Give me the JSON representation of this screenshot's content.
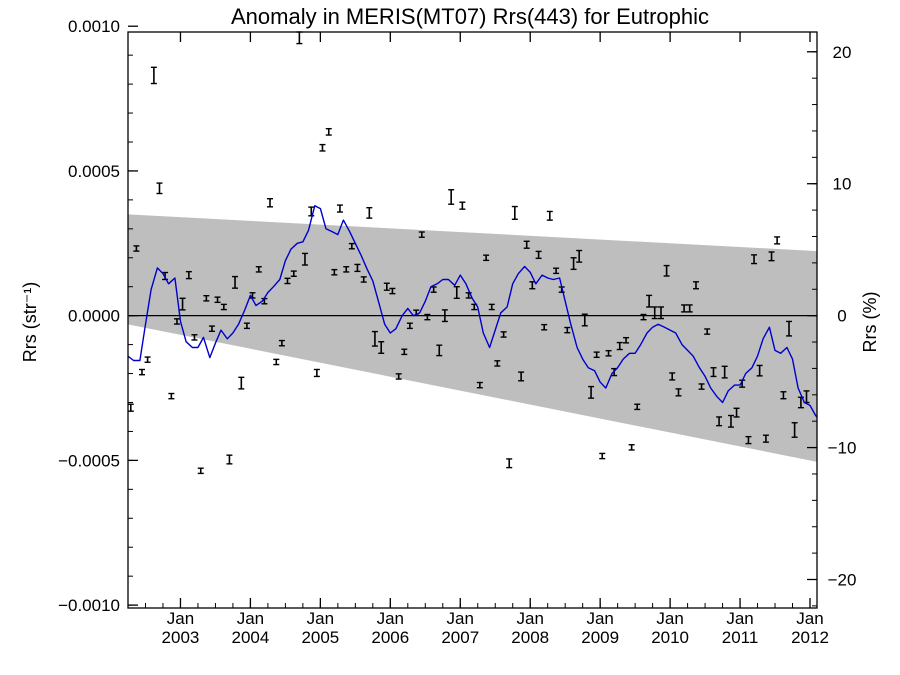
{
  "chart_data": {
    "type": "line",
    "title": "Anomaly in MERIS(MT07) Rrs(443) for Eutrophic",
    "ylabel_left": "Rrs (str⁻¹)",
    "ylabel_right": "Rrs (%)",
    "xlim": [
      2002.25,
      2012.1
    ],
    "ylim_left": [
      -0.00101,
      0.00098
    ],
    "ylim_right": [
      -22.16,
      21.5
    ],
    "yticks_left": [
      {
        "value": 0.001,
        "label": "0.0010"
      },
      {
        "value": 0.0005,
        "label": "0.0005"
      },
      {
        "value": 0.0,
        "label": "0.0000"
      },
      {
        "value": -0.0005,
        "label": "−0.0005"
      },
      {
        "value": -0.001,
        "label": "−0.0010"
      }
    ],
    "yticks_right": [
      {
        "value": 20,
        "label": "20"
      },
      {
        "value": 10,
        "label": "10"
      },
      {
        "value": 0,
        "label": "0"
      },
      {
        "value": -10,
        "label": "−10"
      },
      {
        "value": -20,
        "label": "−20"
      }
    ],
    "xticks": [
      {
        "value": 2003.0,
        "month": "Jan",
        "year": "2003"
      },
      {
        "value": 2004.0,
        "month": "Jan",
        "year": "2004"
      },
      {
        "value": 2005.0,
        "month": "Jan",
        "year": "2005"
      },
      {
        "value": 2006.0,
        "month": "Jan",
        "year": "2006"
      },
      {
        "value": 2007.0,
        "month": "Jan",
        "year": "2007"
      },
      {
        "value": 2008.0,
        "month": "Jan",
        "year": "2008"
      },
      {
        "value": 2009.0,
        "month": "Jan",
        "year": "2009"
      },
      {
        "value": 2010.0,
        "month": "Jan",
        "year": "2010"
      },
      {
        "value": 2011.0,
        "month": "Jan",
        "year": "2011"
      },
      {
        "value": 2012.0,
        "month": "Jan",
        "year": "2012"
      }
    ],
    "confidence_band": {
      "x": [
        2002.25,
        2012.1
      ],
      "upper": [
        0.00035,
        0.000223
      ],
      "lower": [
        -3e-05,
        -0.000505
      ],
      "color": "#bebebe"
    },
    "zero_line": 0,
    "errorbar_points": [
      [
        2002.29,
        -0.000318,
        1.2e-05
      ],
      [
        2002.37,
        0.000232,
        9e-06
      ],
      [
        2002.45,
        -0.000195,
        9e-06
      ],
      [
        2002.53,
        -0.000152,
        9e-06
      ],
      [
        2002.62,
        0.00083,
        2.8e-05
      ],
      [
        2002.7,
        0.00044,
        1.8e-05
      ],
      [
        2002.78,
        0.000137,
        1.2e-05
      ],
      [
        2002.87,
        -0.000278,
        9e-06
      ],
      [
        2002.95,
        -2e-05,
        9e-06
      ],
      [
        2003.03,
        4e-05,
        2e-05
      ],
      [
        2003.12,
        0.00014,
        1.2e-05
      ],
      [
        2003.2,
        -7.5e-05,
        9e-06
      ],
      [
        2003.29,
        -0.000536,
        9e-06
      ],
      [
        2003.37,
        6e-05,
        9e-06
      ],
      [
        2003.45,
        -4.5e-05,
        9e-06
      ],
      [
        2003.53,
        5.5e-05,
        9e-06
      ],
      [
        2003.62,
        3e-05,
        9e-06
      ],
      [
        2003.7,
        -0.000497,
        1.5e-05
      ],
      [
        2003.78,
        0.000115,
        2e-05
      ],
      [
        2003.87,
        -0.000233,
        2e-05
      ],
      [
        2003.95,
        -3.5e-05,
        9e-06
      ],
      [
        2004.03,
        7e-05,
        9e-06
      ],
      [
        2004.12,
        0.00016,
        9e-06
      ],
      [
        2004.2,
        5e-05,
        9e-06
      ],
      [
        2004.28,
        0.00039,
        1.4e-05
      ],
      [
        2004.37,
        -0.00016,
        9e-06
      ],
      [
        2004.45,
        -9.5e-05,
        9e-06
      ],
      [
        2004.53,
        0.00012,
        9e-06
      ],
      [
        2004.62,
        0.000145,
        9e-06
      ],
      [
        2004.7,
        0.00096,
        2e-05
      ],
      [
        2004.78,
        0.000195,
        2e-05
      ],
      [
        2004.87,
        0.00036,
        1.5e-05
      ],
      [
        2004.95,
        -0.000198,
        1.2e-05
      ],
      [
        2005.03,
        0.00058,
        1.1e-05
      ],
      [
        2005.12,
        0.000635,
        1.1e-05
      ],
      [
        2005.2,
        0.00015,
        9e-06
      ],
      [
        2005.28,
        0.00037,
        1.2e-05
      ],
      [
        2005.37,
        0.00016,
        9e-06
      ],
      [
        2005.45,
        0.00024,
        9e-06
      ],
      [
        2005.53,
        0.000165,
        1.2e-05
      ],
      [
        2005.62,
        0.000125,
        9e-06
      ],
      [
        2005.7,
        0.000355,
        1.8e-05
      ],
      [
        2005.78,
        -8e-05,
        2.5e-05
      ],
      [
        2005.87,
        -0.00011,
        2e-05
      ],
      [
        2005.95,
        0.0001,
        1.2e-05
      ],
      [
        2006.03,
        8.5e-05,
        9e-06
      ],
      [
        2006.12,
        -0.00021,
        9e-06
      ],
      [
        2006.2,
        -0.000125,
        9e-06
      ],
      [
        2006.28,
        -3.5e-05,
        9e-06
      ],
      [
        2006.37,
        1e-05,
        9e-06
      ],
      [
        2006.45,
        0.00028,
        9e-06
      ],
      [
        2006.53,
        -5e-06,
        9e-06
      ],
      [
        2006.62,
        9e-05,
        9e-06
      ],
      [
        2006.7,
        -0.00012,
        1.8e-05
      ],
      [
        2006.78,
        0.0,
        2e-05
      ],
      [
        2006.87,
        0.00041,
        2.5e-05
      ],
      [
        2006.95,
        8e-05,
        2e-05
      ],
      [
        2007.03,
        0.00038,
        1.2e-05
      ],
      [
        2007.12,
        7e-05,
        9e-06
      ],
      [
        2007.2,
        3e-05,
        9e-06
      ],
      [
        2007.28,
        -0.00024,
        9e-06
      ],
      [
        2007.37,
        0.0002,
        9e-06
      ],
      [
        2007.45,
        3e-05,
        9e-06
      ],
      [
        2007.53,
        -0.000165,
        9e-06
      ],
      [
        2007.62,
        -6.5e-05,
        9e-06
      ],
      [
        2007.7,
        -0.00051,
        1.5e-05
      ],
      [
        2007.78,
        0.000355,
        2.2e-05
      ],
      [
        2007.87,
        -0.00021,
        1.5e-05
      ],
      [
        2007.95,
        0.000245,
        1.2e-05
      ],
      [
        2008.03,
        0.000105,
        1.2e-05
      ],
      [
        2008.12,
        0.00021,
        1.2e-05
      ],
      [
        2008.2,
        -4e-05,
        9e-06
      ],
      [
        2008.28,
        0.000345,
        1.5e-05
      ],
      [
        2008.37,
        0.000155,
        9e-06
      ],
      [
        2008.45,
        9e-05,
        9e-06
      ],
      [
        2008.53,
        -5e-05,
        9e-06
      ],
      [
        2008.62,
        0.00018,
        2e-05
      ],
      [
        2008.7,
        0.000205,
        2e-05
      ],
      [
        2008.78,
        -1.5e-05,
        2e-05
      ],
      [
        2008.87,
        -0.000265,
        2e-05
      ],
      [
        2008.95,
        -0.000135,
        9e-06
      ],
      [
        2009.03,
        -0.000485,
        9e-06
      ],
      [
        2009.12,
        -0.00013,
        9e-06
      ],
      [
        2009.2,
        -0.000195,
        1.2e-05
      ],
      [
        2009.28,
        -0.000105,
        1.2e-05
      ],
      [
        2009.37,
        -8.5e-05,
        9e-06
      ],
      [
        2009.45,
        -0.000455,
        9e-06
      ],
      [
        2009.53,
        -0.000315,
        9e-06
      ],
      [
        2009.62,
        -5e-06,
        9e-06
      ],
      [
        2009.7,
        5e-05,
        2e-05
      ],
      [
        2009.78,
        1e-05,
        2e-05
      ],
      [
        2009.87,
        1e-05,
        2e-05
      ],
      [
        2009.95,
        0.000155,
        1.8e-05
      ],
      [
        2010.03,
        -0.00021,
        1.2e-05
      ],
      [
        2010.12,
        -0.000265,
        1.2e-05
      ],
      [
        2010.2,
        2.5e-05,
        1.2e-05
      ],
      [
        2010.28,
        2.5e-05,
        1.2e-05
      ],
      [
        2010.37,
        0.000105,
        1.2e-05
      ],
      [
        2010.45,
        -0.000245,
        9e-06
      ],
      [
        2010.53,
        -5.5e-05,
        9e-06
      ],
      [
        2010.62,
        -0.000195,
        1.5e-05
      ],
      [
        2010.7,
        -0.000365,
        1.5e-05
      ],
      [
        2010.78,
        -0.000195,
        2e-05
      ],
      [
        2010.87,
        -0.000365,
        2e-05
      ],
      [
        2010.95,
        -0.000335,
        1.5e-05
      ],
      [
        2011.03,
        -0.000235,
        1.2e-05
      ],
      [
        2011.12,
        -0.00043,
        1.2e-05
      ],
      [
        2011.2,
        0.000195,
        1.5e-05
      ],
      [
        2011.28,
        -0.00019,
        1.8e-05
      ],
      [
        2011.37,
        -0.000425,
        1.2e-05
      ],
      [
        2011.45,
        0.000205,
        1.5e-05
      ],
      [
        2011.53,
        0.00026,
        1.2e-05
      ],
      [
        2011.62,
        -0.000275,
        1.2e-05
      ],
      [
        2011.7,
        -4.5e-05,
        2.5e-05
      ],
      [
        2011.78,
        -0.000395,
        2.5e-05
      ],
      [
        2011.87,
        -0.0003,
        1.8e-05
      ],
      [
        2011.95,
        -0.00028,
        2e-05
      ]
    ],
    "smoothed_series": {
      "color": "#0000cc",
      "x": [
        2002.25,
        2002.33,
        2002.42,
        2002.5,
        2002.58,
        2002.67,
        2002.75,
        2002.83,
        2002.92,
        2003.0,
        2003.08,
        2003.17,
        2003.25,
        2003.33,
        2003.42,
        2003.5,
        2003.58,
        2003.67,
        2003.75,
        2003.83,
        2003.92,
        2004.0,
        2004.08,
        2004.17,
        2004.25,
        2004.33,
        2004.42,
        2004.5,
        2004.58,
        2004.67,
        2004.75,
        2004.83,
        2004.92,
        2005.0,
        2005.08,
        2005.17,
        2005.25,
        2005.33,
        2005.42,
        2005.5,
        2005.58,
        2005.67,
        2005.75,
        2005.83,
        2005.92,
        2006.0,
        2006.08,
        2006.17,
        2006.25,
        2006.33,
        2006.42,
        2006.5,
        2006.58,
        2006.67,
        2006.75,
        2006.83,
        2006.92,
        2007.0,
        2007.08,
        2007.17,
        2007.25,
        2007.33,
        2007.42,
        2007.5,
        2007.58,
        2007.67,
        2007.75,
        2007.83,
        2007.92,
        2008.0,
        2008.08,
        2008.17,
        2008.25,
        2008.33,
        2008.42,
        2008.5,
        2008.58,
        2008.67,
        2008.75,
        2008.83,
        2008.92,
        2009.0,
        2009.08,
        2009.17,
        2009.25,
        2009.33,
        2009.42,
        2009.5,
        2009.58,
        2009.67,
        2009.75,
        2009.83,
        2009.92,
        2010.0,
        2010.08,
        2010.17,
        2010.25,
        2010.33,
        2010.42,
        2010.5,
        2010.58,
        2010.67,
        2010.75,
        2010.83,
        2010.92,
        2011.0,
        2011.08,
        2011.17,
        2011.25,
        2011.33,
        2011.42,
        2011.5,
        2011.58,
        2011.67,
        2011.75,
        2011.83,
        2011.92,
        2012.0,
        2012.08,
        2012.1
      ],
      "y": [
        -0.00014,
        -0.000155,
        -0.000155,
        -3e-05,
        9e-05,
        0.000165,
        0.000145,
        0.00011,
        0.00013,
        -2e-05,
        -9e-05,
        -0.00011,
        -0.00011,
        -7.5e-05,
        -0.000145,
        -9.5e-05,
        -5e-05,
        -8e-05,
        -6e-05,
        -3e-05,
        2e-05,
        7e-05,
        3.5e-05,
        5e-05,
        8e-05,
        0.0001,
        0.000125,
        0.00019,
        0.00023,
        0.00025,
        0.000255,
        0.000295,
        0.00038,
        0.00037,
        0.0003,
        0.00029,
        0.00028,
        0.00033,
        0.00029,
        0.00025,
        0.00021,
        0.00016,
        0.00012,
        5e-05,
        -3e-05,
        -6e-05,
        -4.5e-05,
        0.0,
        2.5e-05,
        0.0,
        1e-05,
        5e-05,
        0.0001,
        0.00011,
        0.000125,
        0.000125,
        0.000105,
        0.00014,
        0.00011,
        6e-05,
        3e-05,
        -6e-05,
        -0.00011,
        -5e-05,
        1e-05,
        3e-05,
        0.00011,
        0.000145,
        0.00017,
        0.00015,
        0.00011,
        0.00014,
        0.00013,
        0.000125,
        0.00013,
        5e-05,
        -3e-05,
        -0.00011,
        -0.00015,
        -0.00018,
        -0.00019,
        -0.00023,
        -0.00025,
        -0.0002,
        -0.00018,
        -0.00015,
        -0.00013,
        -0.00013,
        -0.0001,
        -6e-05,
        -4e-05,
        -3e-05,
        -4e-05,
        -5e-05,
        -6e-05,
        -0.0001,
        -0.00012,
        -0.00014,
        -0.00018,
        -0.00021,
        -0.00025,
        -0.00028,
        -0.0003,
        -0.00026,
        -0.00024,
        -0.00024,
        -0.0002,
        -0.00018,
        -0.00014,
        -8e-05,
        -4e-05,
        -0.00012,
        -0.00013,
        -0.00011,
        -0.00015,
        -0.00025,
        -0.0003,
        -0.00031,
        -0.000345,
        -0.00035
      ]
    }
  }
}
